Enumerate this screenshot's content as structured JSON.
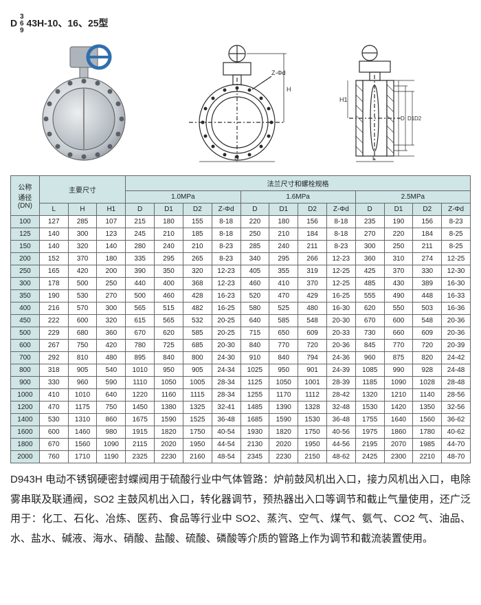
{
  "model": {
    "prefix_letter": "D",
    "stack_digits": [
      "3",
      "6",
      "9"
    ],
    "suffix": "43H-10、16、25型"
  },
  "colors": {
    "header_bg": "#cfe5e6",
    "table_border": "#666",
    "valve_body": "#d7dbde",
    "valve_body_shadow": "#9aa0a5",
    "handwheel": "#2f6fae",
    "line": "#2a2a2a"
  },
  "diagram_labels": {
    "front_height": "H",
    "front_diam": "D",
    "side_length": "L",
    "side_height": "H1",
    "holes": "Z-Φd",
    "d1": "D1",
    "d2": "D2"
  },
  "table": {
    "header_group_main": "主要尺寸",
    "header_group_flange": "法兰尺寸和螺栓规格",
    "pressure_groups": [
      "1.0MPa",
      "1.6MPa",
      "2.5MPa"
    ],
    "dn_label_top": "公称",
    "dn_label_mid": "通径",
    "dn_label_bot": "(DN)",
    "main_cols": [
      "L",
      "H",
      "H1"
    ],
    "flange_cols": [
      "D",
      "D1",
      "D2",
      "Z-Φd"
    ],
    "rows": [
      [
        "100",
        "127",
        "285",
        "107",
        "215",
        "180",
        "155",
        "8-18",
        "220",
        "180",
        "156",
        "8-18",
        "235",
        "190",
        "156",
        "8-23"
      ],
      [
        "125",
        "140",
        "300",
        "123",
        "245",
        "210",
        "185",
        "8-18",
        "250",
        "210",
        "184",
        "8-18",
        "270",
        "220",
        "184",
        "8-25"
      ],
      [
        "150",
        "140",
        "320",
        "140",
        "280",
        "240",
        "210",
        "8-23",
        "285",
        "240",
        "211",
        "8-23",
        "300",
        "250",
        "211",
        "8-25"
      ],
      [
        "200",
        "152",
        "370",
        "180",
        "335",
        "295",
        "265",
        "8-23",
        "340",
        "295",
        "266",
        "12-23",
        "360",
        "310",
        "274",
        "12-25"
      ],
      [
        "250",
        "165",
        "420",
        "200",
        "390",
        "350",
        "320",
        "12-23",
        "405",
        "355",
        "319",
        "12-25",
        "425",
        "370",
        "330",
        "12-30"
      ],
      [
        "300",
        "178",
        "500",
        "250",
        "440",
        "400",
        "368",
        "12-23",
        "460",
        "410",
        "370",
        "12-25",
        "485",
        "430",
        "389",
        "16-30"
      ],
      [
        "350",
        "190",
        "530",
        "270",
        "500",
        "460",
        "428",
        "16-23",
        "520",
        "470",
        "429",
        "16-25",
        "555",
        "490",
        "448",
        "16-33"
      ],
      [
        "400",
        "216",
        "570",
        "300",
        "565",
        "515",
        "482",
        "16-25",
        "580",
        "525",
        "480",
        "16-30",
        "620",
        "550",
        "503",
        "16-36"
      ],
      [
        "450",
        "222",
        "600",
        "320",
        "615",
        "565",
        "532",
        "20-25",
        "640",
        "585",
        "548",
        "20-30",
        "670",
        "600",
        "548",
        "20-36"
      ],
      [
        "500",
        "229",
        "680",
        "360",
        "670",
        "620",
        "585",
        "20-25",
        "715",
        "650",
        "609",
        "20-33",
        "730",
        "660",
        "609",
        "20-36"
      ],
      [
        "600",
        "267",
        "750",
        "420",
        "780",
        "725",
        "685",
        "20-30",
        "840",
        "770",
        "720",
        "20-36",
        "845",
        "770",
        "720",
        "20-39"
      ],
      [
        "700",
        "292",
        "810",
        "480",
        "895",
        "840",
        "800",
        "24-30",
        "910",
        "840",
        "794",
        "24-36",
        "960",
        "875",
        "820",
        "24-42"
      ],
      [
        "800",
        "318",
        "905",
        "540",
        "1010",
        "950",
        "905",
        "24-34",
        "1025",
        "950",
        "901",
        "24-39",
        "1085",
        "990",
        "928",
        "24-48"
      ],
      [
        "900",
        "330",
        "960",
        "590",
        "1110",
        "1050",
        "1005",
        "28-34",
        "1125",
        "1050",
        "1001",
        "28-39",
        "1185",
        "1090",
        "1028",
        "28-48"
      ],
      [
        "1000",
        "410",
        "1010",
        "640",
        "1220",
        "1160",
        "1115",
        "28-34",
        "1255",
        "1170",
        "1112",
        "28-42",
        "1320",
        "1210",
        "1140",
        "28-56"
      ],
      [
        "1200",
        "470",
        "1175",
        "750",
        "1450",
        "1380",
        "1325",
        "32-41",
        "1485",
        "1390",
        "1328",
        "32-48",
        "1530",
        "1420",
        "1350",
        "32-56"
      ],
      [
        "1400",
        "530",
        "1310",
        "860",
        "1675",
        "1590",
        "1525",
        "36-48",
        "1685",
        "1590",
        "1530",
        "36-48",
        "1755",
        "1640",
        "1560",
        "36-62"
      ],
      [
        "1600",
        "600",
        "1460",
        "980",
        "1915",
        "1820",
        "1750",
        "40-54",
        "1930",
        "1820",
        "1750",
        "40-56",
        "1975",
        "1860",
        "1780",
        "40-62"
      ],
      [
        "1800",
        "670",
        "1560",
        "1090",
        "2115",
        "2020",
        "1950",
        "44-54",
        "2130",
        "2020",
        "1950",
        "44-56",
        "2195",
        "2070",
        "1985",
        "44-70"
      ],
      [
        "2000",
        "760",
        "1710",
        "1190",
        "2325",
        "2230",
        "2160",
        "48-54",
        "2345",
        "2230",
        "2150",
        "48-62",
        "2425",
        "2300",
        "2210",
        "48-70"
      ]
    ]
  },
  "description": "D943H 电动不锈钢硬密封蝶阀用于硫酸行业中气体管路：炉前鼓风机出入口，接力风机出入口，电除雾串联及联通阀，SO2 主鼓风机出入口，转化器调节，预热器出入口等调节和截止气量使用，还广泛用于：化工、石化、冶炼、医药、食品等行业中 SO2、蒸汽、空气、煤气、氨气、CO2 气、油品、水、盐水、碱液、海水、硝酸、盐酸、硫酸、磷酸等介质的管路上作为调节和截流装置使用。"
}
